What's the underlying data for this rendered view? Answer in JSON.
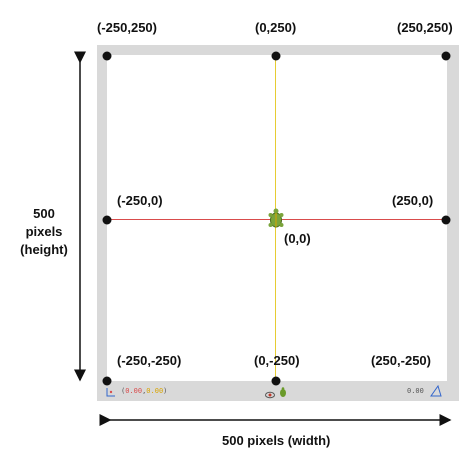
{
  "corner_labels": {
    "top_left": "(-250,250)",
    "top_center": "(0,250)",
    "top_right": "(250,250)",
    "mid_left": "(-250,0)",
    "mid_right": "(250,0)",
    "center": "(0,0)",
    "bottom_left": "(-250,-250)",
    "bottom_center": "(0,-250)",
    "bottom_right": "(250,-250)"
  },
  "dimensions": {
    "height_line1": "500",
    "height_line2": "pixels",
    "height_line3": "(height)",
    "width": "500 pixels (width)"
  },
  "statusbar": {
    "coord_open": "(",
    "coord_x": "0.00",
    "coord_sep": ",",
    "coord_y": "0.00",
    "coord_close": ")",
    "zoom": "0.00"
  },
  "colors": {
    "frame": "#d9d9d9",
    "x_axis": "#d94c4c",
    "y_axis": "#e6cc33",
    "turtle": "#6a9a2a"
  }
}
